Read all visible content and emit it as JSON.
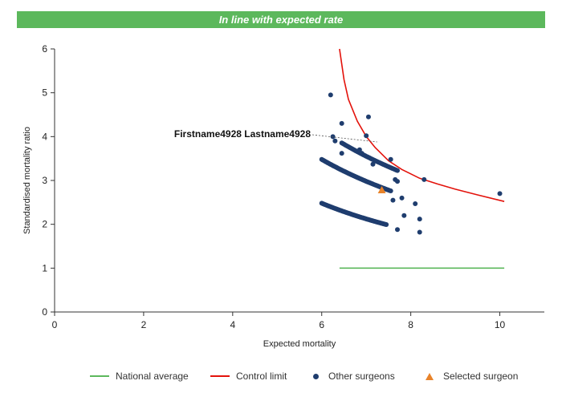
{
  "banner": {
    "text": "In line with expected rate",
    "color": "#5cb85c"
  },
  "chart_data": {
    "type": "scatter",
    "xlabel": "Expected mortality",
    "ylabel": "Standardised mortality ratio",
    "xlim": [
      0,
      11
    ],
    "ylim": [
      0,
      6
    ],
    "xticks": [
      0,
      2,
      4,
      6,
      8,
      10
    ],
    "yticks": [
      0,
      1,
      2,
      3,
      4,
      5,
      6
    ],
    "grid": false,
    "legend_position": "bottom",
    "annotation": {
      "text": "Firstname4928 Lastname4928",
      "target": [
        7.3,
        2.78
      ]
    },
    "series": [
      {
        "name": "National average",
        "kind": "line",
        "color": "#5cb85c",
        "points": [
          [
            6.4,
            1.0
          ],
          [
            10.1,
            1.0
          ]
        ]
      },
      {
        "name": "Control limit",
        "kind": "line",
        "color": "#e3120b",
        "points": [
          [
            6.4,
            6.0
          ],
          [
            6.5,
            5.3
          ],
          [
            6.6,
            4.85
          ],
          [
            6.8,
            4.35
          ],
          [
            7.0,
            4.0
          ],
          [
            7.2,
            3.75
          ],
          [
            7.5,
            3.45
          ],
          [
            7.8,
            3.25
          ],
          [
            8.2,
            3.05
          ],
          [
            8.6,
            2.92
          ],
          [
            9.0,
            2.8
          ],
          [
            9.5,
            2.67
          ],
          [
            10.1,
            2.52
          ]
        ]
      },
      {
        "name": "Other surgeons",
        "kind": "points",
        "color": "#1f3d6e",
        "curves": [
          {
            "const": 15,
            "x_from": 6.0,
            "x_to": 7.45,
            "count": 70
          },
          {
            "const": 21,
            "x_from": 6.0,
            "x_to": 7.55,
            "count": 70
          },
          {
            "const": 25,
            "x_from": 6.45,
            "x_to": 7.7,
            "count": 45
          }
        ],
        "extra_points": [
          [
            6.2,
            4.95
          ],
          [
            6.45,
            4.3
          ],
          [
            7.05,
            4.45
          ],
          [
            7.0,
            4.02
          ],
          [
            6.25,
            4.0
          ],
          [
            6.3,
            3.9
          ],
          [
            6.45,
            3.62
          ],
          [
            6.85,
            3.7
          ],
          [
            6.9,
            3.62
          ],
          [
            7.15,
            3.37
          ],
          [
            7.55,
            3.48
          ],
          [
            7.65,
            3.02
          ],
          [
            7.7,
            2.98
          ],
          [
            8.3,
            3.02
          ],
          [
            7.8,
            2.6
          ],
          [
            7.6,
            2.55
          ],
          [
            8.1,
            2.47
          ],
          [
            7.85,
            2.2
          ],
          [
            8.2,
            2.12
          ],
          [
            7.7,
            1.88
          ],
          [
            8.2,
            1.82
          ],
          [
            10.0,
            2.7
          ]
        ]
      },
      {
        "name": "Selected surgeon",
        "kind": "triangle",
        "color": "#e8832a",
        "points": [
          [
            7.35,
            2.78
          ]
        ]
      }
    ]
  }
}
